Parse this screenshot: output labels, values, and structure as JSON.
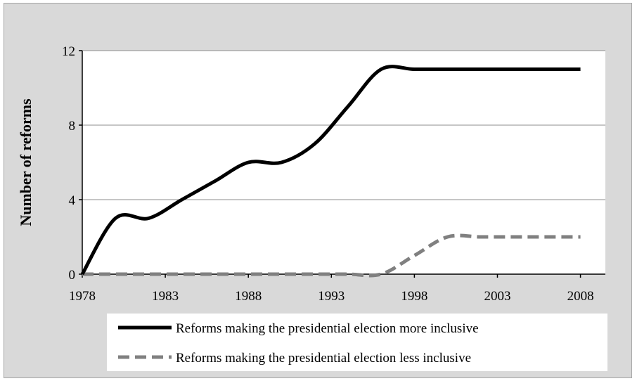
{
  "chart_data": {
    "type": "line",
    "ylabel": "Number of reforms",
    "xlabel": "",
    "xlim": [
      1978,
      2008
    ],
    "ylim": [
      0,
      12
    ],
    "y_ticks": [
      "0",
      "4",
      "8",
      "12"
    ],
    "x_ticks": [
      "1978",
      "1983",
      "1988",
      "1993",
      "1998",
      "2003",
      "2008"
    ],
    "grid": "horizontal",
    "legend_position": "bottom",
    "series": [
      {
        "name": "Reforms making the presidential election more inclusive",
        "color": "#000000",
        "style": "solid",
        "x": [
          1978,
          1980,
          1982,
          1984,
          1986,
          1988,
          1990,
          1992,
          1994,
          1996,
          1998,
          2000,
          2002,
          2004,
          2006,
          2008
        ],
        "y": [
          0,
          3,
          3,
          4,
          5,
          6,
          6,
          7,
          9,
          11,
          11,
          11,
          11,
          11,
          11,
          11
        ]
      },
      {
        "name": "Reforms making the presidential election less inclusive",
        "color": "#808080",
        "style": "dashed",
        "x": [
          1978,
          1980,
          1982,
          1984,
          1986,
          1988,
          1990,
          1992,
          1994,
          1996,
          1998,
          2000,
          2002,
          2004,
          2006,
          2008
        ],
        "y": [
          0,
          0,
          0,
          0,
          0,
          0,
          0,
          0,
          0,
          0,
          1,
          2,
          2,
          2,
          2,
          2
        ]
      }
    ]
  }
}
